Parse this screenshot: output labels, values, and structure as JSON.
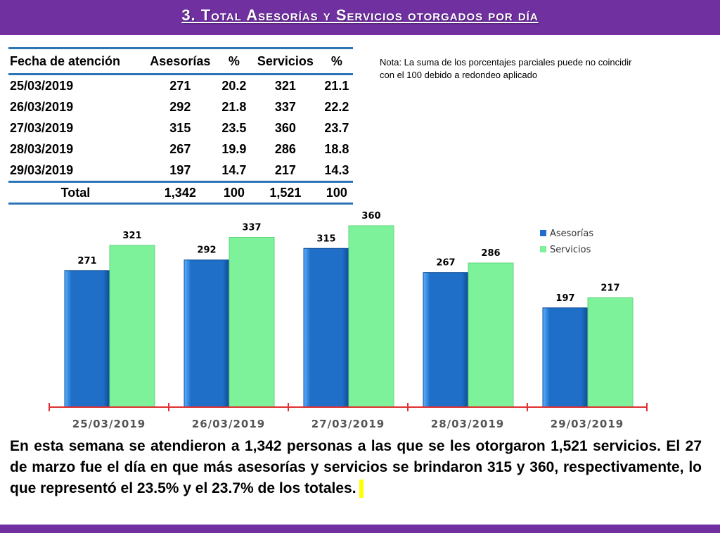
{
  "header": {
    "title": "3. Total Asesorías y Servicios otorgados por día"
  },
  "table": {
    "headers": [
      "Fecha de atención",
      "Asesorías",
      "%",
      "Servicios",
      "%"
    ],
    "rows": [
      [
        "25/03/2019",
        "271",
        "20.2",
        "321",
        "21.1"
      ],
      [
        "26/03/2019",
        "292",
        "21.8",
        "337",
        "22.2"
      ],
      [
        "27/03/2019",
        "315",
        "23.5",
        "360",
        "23.7"
      ],
      [
        "28/03/2019",
        "267",
        "19.9",
        "286",
        "18.8"
      ],
      [
        "29/03/2019",
        "197",
        "14.7",
        "217",
        "14.3"
      ]
    ],
    "total": [
      "Total",
      "1,342",
      "100",
      "1,521",
      "100"
    ]
  },
  "note": "Nota: La suma de los porcentajes parciales puede no coincidir con el 100 debido a redondeo aplicado",
  "colors": {
    "header": "#7030a0",
    "asesorias": "#1f6fc9",
    "servicios": "#7ef29a",
    "table_rule": "#2e75b6",
    "axis": "#e03030"
  },
  "chart_data": {
    "type": "bar",
    "categories": [
      "25/03/2019",
      "26/03/2019",
      "27/03/2019",
      "28/03/2019",
      "29/03/2019"
    ],
    "series": [
      {
        "name": "Asesorías",
        "values": [
          271,
          292,
          315,
          267,
          197
        ]
      },
      {
        "name": "Servicios",
        "values": [
          321,
          337,
          360,
          286,
          217
        ]
      }
    ],
    "ylim": [
      0,
      360
    ],
    "legend": "top-right",
    "grid": false,
    "data_labels": true
  },
  "summary": "En esta semana se atendieron a 1,342 personas a las que se les otorgaron 1,521 servicios. El 27 de marzo fue el día en que más asesorías y servicios se brindaron 315 y 360, respectivamente, lo que representó  el 23.5% y el 23.7% de los totales."
}
